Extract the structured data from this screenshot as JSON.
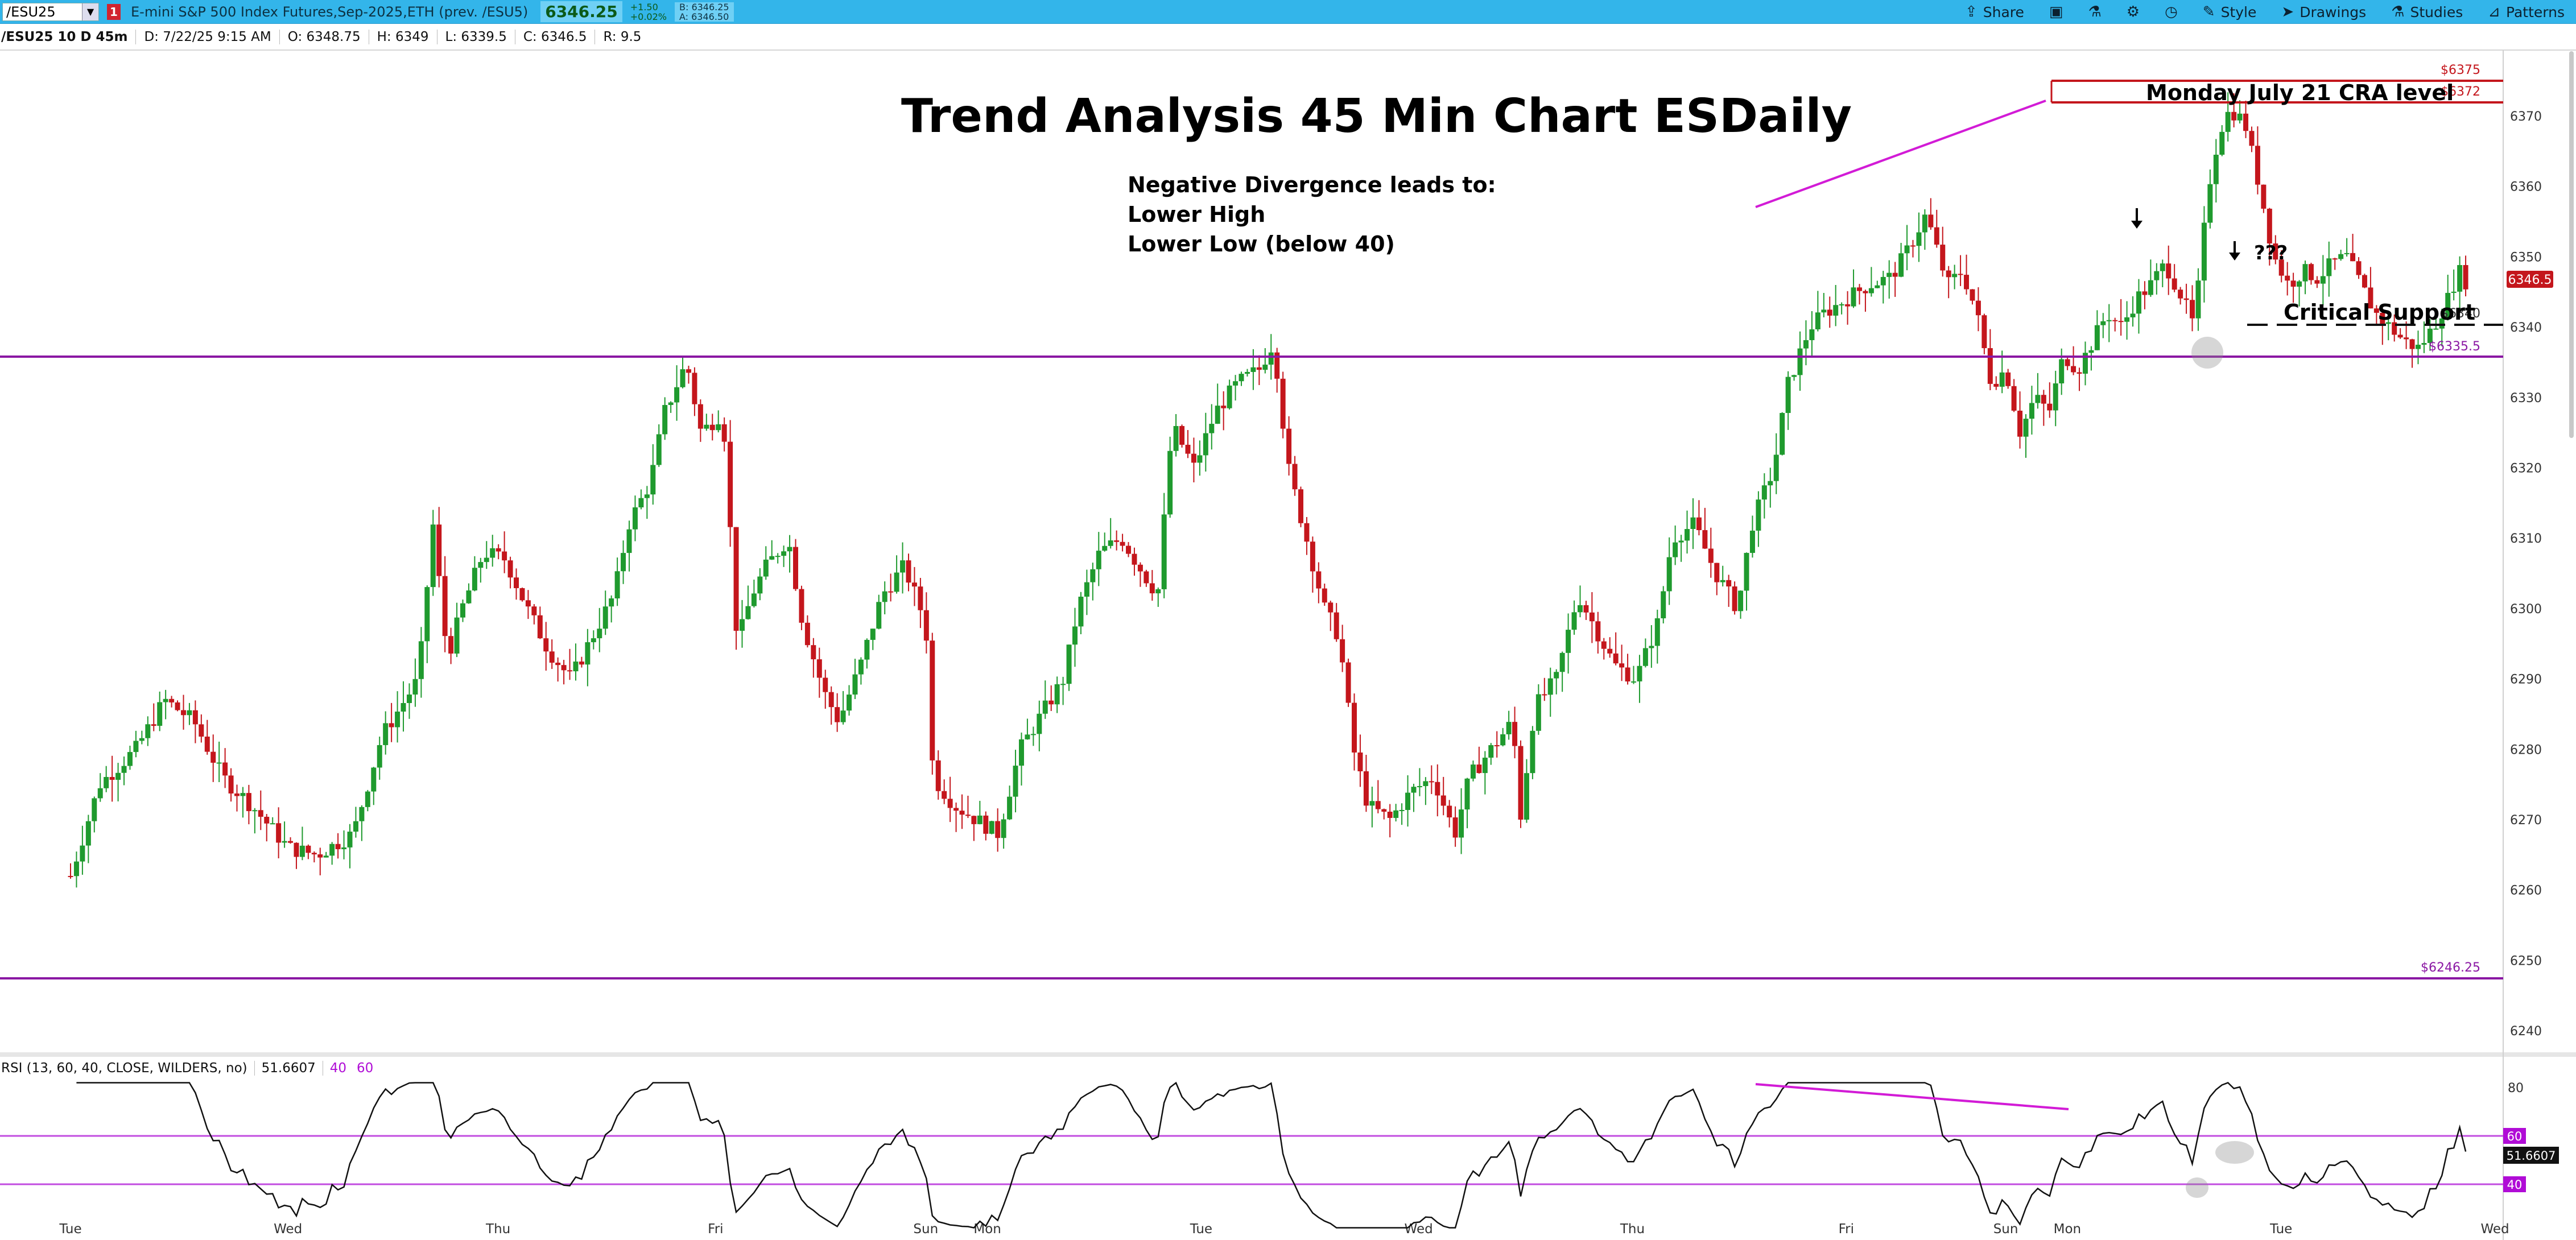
{
  "toolbar": {
    "symbol": "/ESU25",
    "flag": "1",
    "description": "E-mini S&P 500 Index Futures,Sep-2025,ETH (prev. /ESU5)",
    "last": "6346.25",
    "change": "+1.50",
    "change_pct": "+0.02%",
    "bid": "B: 6346.25",
    "ask": "A: 6346.50",
    "items": [
      "Share",
      "Style",
      "Drawings",
      "Studies",
      "Patterns"
    ]
  },
  "info": {
    "label": "/ESU25 10 D 45m",
    "date": "D: 7/22/25 9:15 AM",
    "open": "O: 6348.75",
    "high": "H: 6349",
    "low": "L: 6339.5",
    "close": "C: 6346.5",
    "range": "R: 9.5"
  },
  "annotations": {
    "title": "Trend Analysis 45 Min Chart ESDaily",
    "note_line1": "Negative Divergence leads to:",
    "note_line2": "Lower High",
    "note_line3": "Lower Low (below 40)",
    "cra": "Monday July 21 CRA level",
    "critical": "Critical Support",
    "question": "???"
  },
  "levels": {
    "l6375": "$6375",
    "l6372": "$6372",
    "l6340": "$6340",
    "l6335": "$6335.5",
    "l6246": "$6246.25",
    "last_badge": "6346.5"
  },
  "rsi": {
    "label": "RSI (13, 60, 40, CLOSE, WILDERS, no)",
    "value": "51.6607",
    "low": "40",
    "high": "60",
    "axis80": "80"
  },
  "colors": {
    "up": "#1f9a2e",
    "down": "#c4161c",
    "support": "#8a17a3",
    "resistance": "#c4161c",
    "trend": "#d21bd6",
    "rsi_band": "#c24de0"
  },
  "chart_data": {
    "type": "candlestick",
    "title": "Trend Analysis 45 Min Chart ESDaily",
    "yticks": [
      6240,
      6250,
      6260,
      6270,
      6280,
      6290,
      6300,
      6310,
      6320,
      6330,
      6340,
      6350,
      6360,
      6370
    ],
    "ylim": [
      6236,
      6378
    ],
    "days": [
      {
        "label": "Tue",
        "sess": 0.0
      },
      {
        "label": "Wed",
        "sess": 3.0
      },
      {
        "label": "Thu",
        "sess": 5.9
      },
      {
        "label": "Fri",
        "sess": 8.9
      },
      {
        "label": "Sun",
        "sess": 11.8
      },
      {
        "label": "Mon",
        "sess": 12.65
      },
      {
        "label": "Tue",
        "sess": 15.6
      },
      {
        "label": "Wed",
        "sess": 18.6
      },
      {
        "label": "Thu",
        "sess": 21.55
      },
      {
        "label": "Fri",
        "sess": 24.5
      },
      {
        "label": "Sun",
        "sess": 26.7
      },
      {
        "label": "Mon",
        "sess": 27.55
      },
      {
        "label": "Tue",
        "sess": 30.5
      },
      {
        "label": "Wed",
        "sess": 33.45
      }
    ],
    "price_path": [
      [
        0,
        6262
      ],
      [
        0.4,
        6275
      ],
      [
        0.9,
        6280
      ],
      [
        1.3,
        6287
      ],
      [
        1.7,
        6284
      ],
      [
        2.1,
        6276
      ],
      [
        2.5,
        6272
      ],
      [
        3.0,
        6266
      ],
      [
        3.4,
        6265
      ],
      [
        3.9,
        6268
      ],
      [
        4.3,
        6282
      ],
      [
        4.8,
        6290
      ],
      [
        5.0,
        6312
      ],
      [
        5.2,
        6293
      ],
      [
        5.4,
        6300
      ],
      [
        5.7,
        6308
      ],
      [
        6.0,
        6307
      ],
      [
        6.3,
        6300
      ],
      [
        6.6,
        6294
      ],
      [
        6.9,
        6290
      ],
      [
        7.2,
        6296
      ],
      [
        7.5,
        6302
      ],
      [
        7.7,
        6312
      ],
      [
        8.0,
        6318
      ],
      [
        8.2,
        6328
      ],
      [
        8.5,
        6335
      ],
      [
        8.7,
        6325
      ],
      [
        9.0,
        6328
      ],
      [
        9.2,
        6295
      ],
      [
        9.4,
        6302
      ],
      [
        9.6,
        6306
      ],
      [
        9.9,
        6310
      ],
      [
        10.1,
        6298
      ],
      [
        10.4,
        6288
      ],
      [
        10.6,
        6284
      ],
      [
        10.9,
        6292
      ],
      [
        11.2,
        6302
      ],
      [
        11.5,
        6306
      ],
      [
        11.8,
        6298
      ],
      [
        11.9,
        6276
      ],
      [
        12.2,
        6272
      ],
      [
        12.5,
        6270
      ],
      [
        12.8,
        6268
      ],
      [
        13.1,
        6280
      ],
      [
        13.4,
        6285
      ],
      [
        13.7,
        6290
      ],
      [
        13.9,
        6300
      ],
      [
        14.2,
        6308
      ],
      [
        14.5,
        6310
      ],
      [
        14.8,
        6305
      ],
      [
        15.0,
        6302
      ],
      [
        15.2,
        6326
      ],
      [
        15.5,
        6320
      ],
      [
        15.8,
        6328
      ],
      [
        16.1,
        6332
      ],
      [
        16.4,
        6334
      ],
      [
        16.6,
        6338
      ],
      [
        16.8,
        6320
      ],
      [
        17.0,
        6312
      ],
      [
        17.3,
        6300
      ],
      [
        17.5,
        6296
      ],
      [
        17.7,
        6280
      ],
      [
        17.9,
        6272
      ],
      [
        18.2,
        6270
      ],
      [
        18.5,
        6274
      ],
      [
        18.8,
        6276
      ],
      [
        19.1,
        6268
      ],
      [
        19.3,
        6276
      ],
      [
        19.6,
        6280
      ],
      [
        19.9,
        6284
      ],
      [
        20.0,
        6270
      ],
      [
        20.2,
        6286
      ],
      [
        20.5,
        6290
      ],
      [
        20.8,
        6302
      ],
      [
        21.1,
        6296
      ],
      [
        21.3,
        6292
      ],
      [
        21.6,
        6290
      ],
      [
        21.9,
        6298
      ],
      [
        22.1,
        6310
      ],
      [
        22.4,
        6312
      ],
      [
        22.7,
        6305
      ],
      [
        23.0,
        6300
      ],
      [
        23.2,
        6312
      ],
      [
        23.5,
        6320
      ],
      [
        23.7,
        6332
      ],
      [
        24.0,
        6340
      ],
      [
        24.2,
        6342
      ],
      [
        24.5,
        6344
      ],
      [
        24.8,
        6346
      ],
      [
        25.1,
        6347
      ],
      [
        25.3,
        6350
      ],
      [
        25.6,
        6356
      ],
      [
        25.9,
        6346
      ],
      [
        26.1,
        6348
      ],
      [
        26.3,
        6342
      ],
      [
        26.5,
        6332
      ],
      [
        26.7,
        6334
      ],
      [
        26.9,
        6325
      ],
      [
        27.1,
        6330
      ],
      [
        27.3,
        6328
      ],
      [
        27.5,
        6336
      ],
      [
        27.7,
        6334
      ],
      [
        27.9,
        6338
      ],
      [
        28.1,
        6342
      ],
      [
        28.3,
        6340
      ],
      [
        28.5,
        6344
      ],
      [
        28.7,
        6346
      ],
      [
        28.9,
        6349
      ],
      [
        29.1,
        6345
      ],
      [
        29.3,
        6340
      ],
      [
        29.5,
        6360
      ],
      [
        29.65,
        6368
      ],
      [
        29.8,
        6371
      ],
      [
        30.0,
        6369
      ],
      [
        30.2,
        6360
      ],
      [
        30.4,
        6350
      ],
      [
        30.6,
        6346
      ],
      [
        30.8,
        6348
      ],
      [
        31.0,
        6347
      ],
      [
        31.2,
        6349
      ],
      [
        31.4,
        6350
      ],
      [
        31.6,
        6346
      ],
      [
        31.8,
        6342
      ],
      [
        32.0,
        6340
      ],
      [
        32.2,
        6338
      ],
      [
        32.4,
        6337
      ],
      [
        32.6,
        6340
      ],
      [
        32.8,
        6344
      ],
      [
        32.95,
        6348
      ],
      [
        33.05,
        6346.5
      ]
    ],
    "lines": {
      "resistance_1": 6375,
      "resistance_2": 6372,
      "critical_support": 6340,
      "support": 6335.5,
      "floor": 6246.25
    },
    "rsi": {
      "current": 51.6607,
      "overbought": 60,
      "oversold": 40
    }
  }
}
